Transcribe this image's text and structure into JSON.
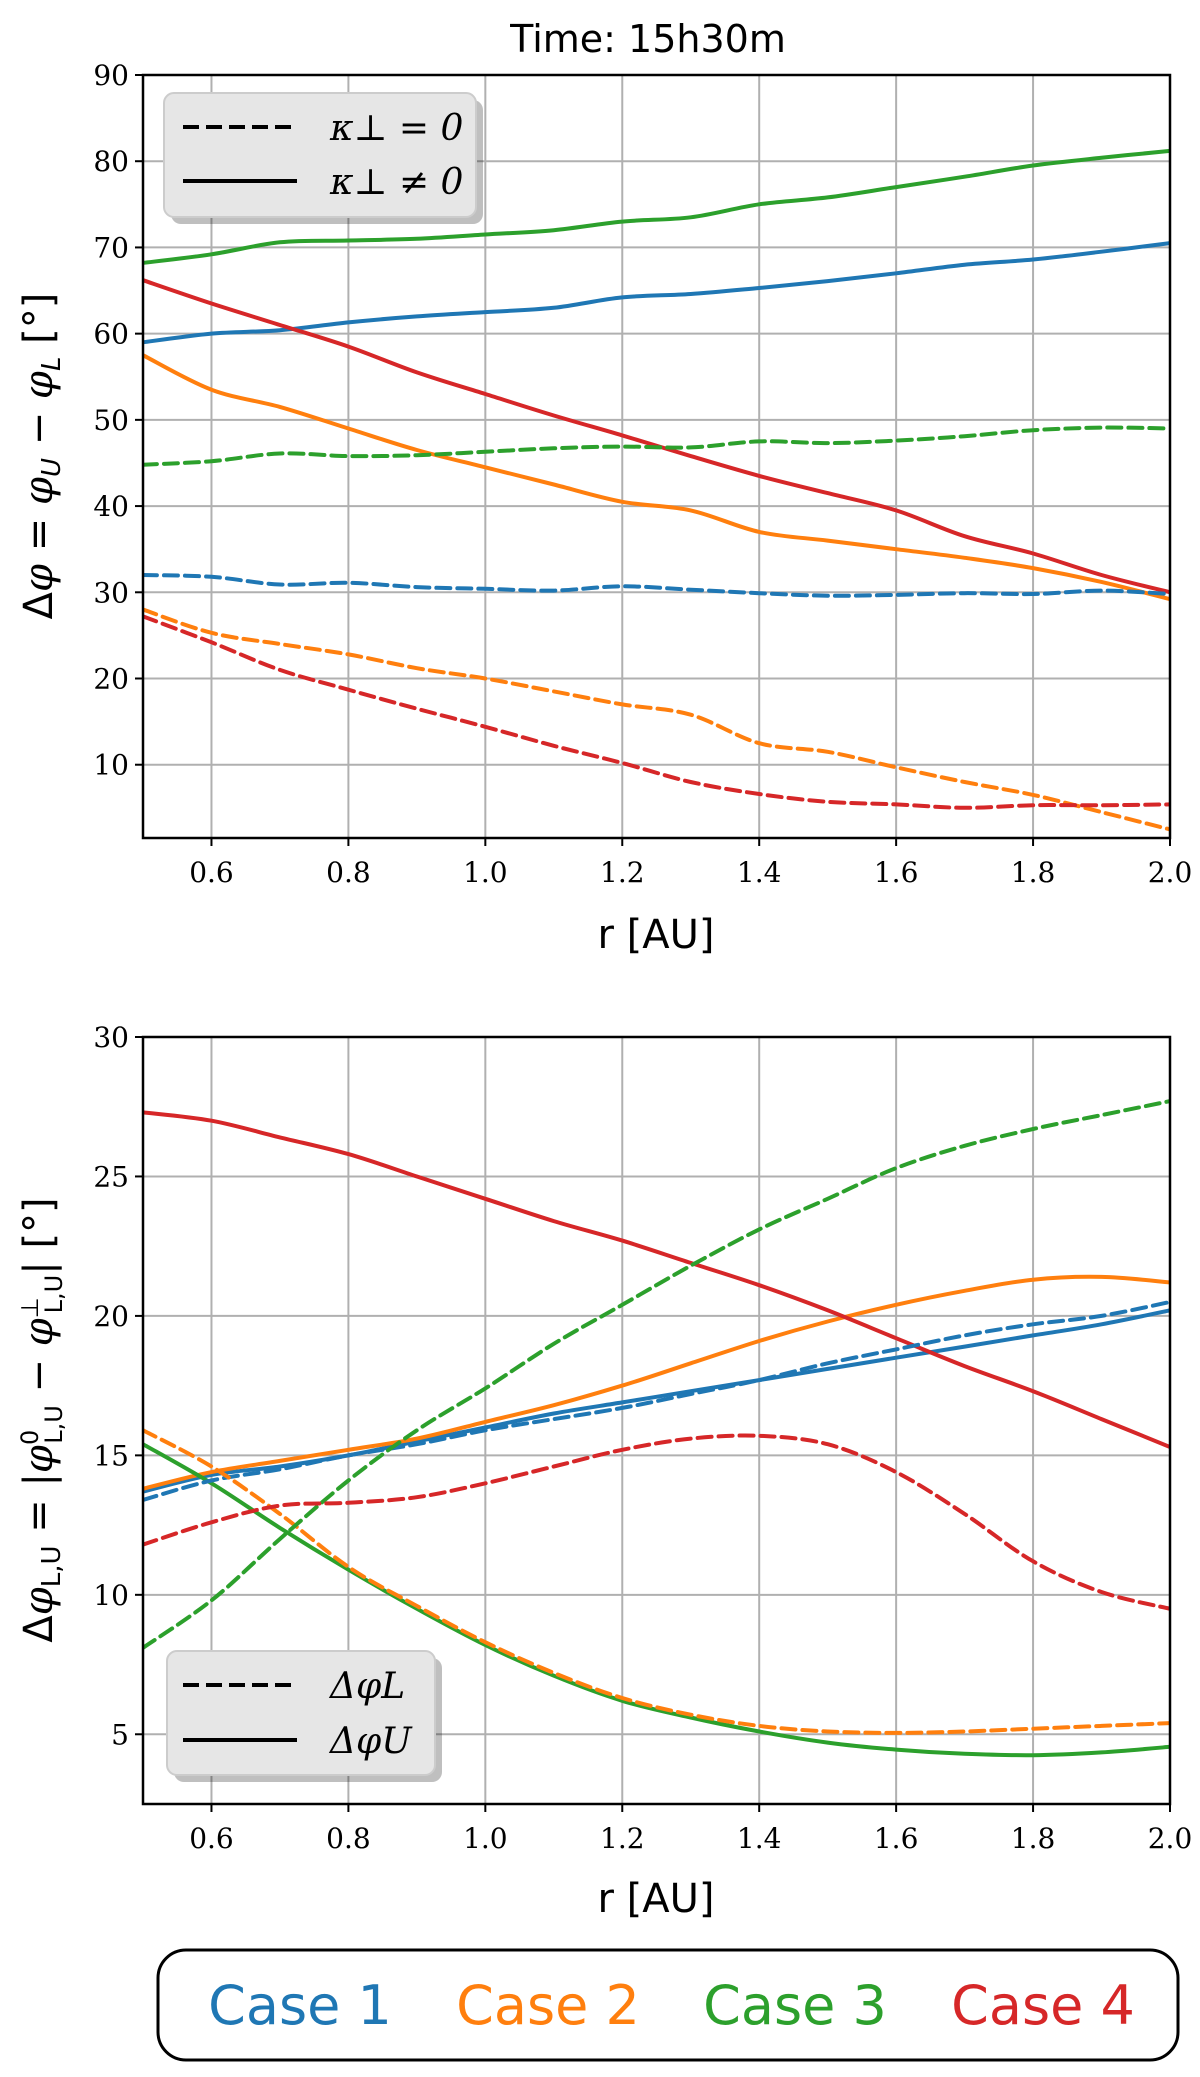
{
  "title": "Time: 15h30m",
  "colors": {
    "case1": "#1f77b4",
    "case2": "#ff7f0e",
    "case3": "#2ca02c",
    "case4": "#d62728"
  },
  "case_legend": [
    "Case 1",
    "Case 2",
    "Case 3",
    "Case 4"
  ],
  "chart_data": [
    {
      "type": "line",
      "title": "Time: 15h30m",
      "xlabel": "r [AU]",
      "ylabel": "Δφ = φU − φL [°]",
      "xlim": [
        0.5,
        2.0
      ],
      "ylim": [
        1.5,
        90
      ],
      "grid": true,
      "xticks": [
        0.6,
        0.8,
        1.0,
        1.2,
        1.4,
        1.6,
        1.8,
        2.0
      ],
      "xtick_labels": [
        "0.6",
        "0.8",
        "1.0",
        "1.2",
        "1.4",
        "1.6",
        "1.8",
        "2.0"
      ],
      "yticks": [
        10,
        20,
        30,
        40,
        50,
        60,
        70,
        80,
        90
      ],
      "ytick_labels": [
        "10",
        "20",
        "30",
        "40",
        "50",
        "60",
        "70",
        "80",
        "90"
      ],
      "legend": {
        "position": "top-left",
        "entries": [
          {
            "style": "dashed",
            "label": "κ⊥ = 0"
          },
          {
            "style": "solid",
            "label": "κ⊥ ≠ 0"
          }
        ]
      },
      "x": [
        0.5,
        0.6,
        0.7,
        0.8,
        0.9,
        1.0,
        1.1,
        1.2,
        1.3,
        1.4,
        1.5,
        1.6,
        1.7,
        1.8,
        1.9,
        2.0
      ],
      "series": [
        {
          "name": "Case 1 κ⊥≠0",
          "case": "case1",
          "style": "solid",
          "values": [
            59,
            60,
            60.4,
            61.3,
            62,
            62.5,
            63,
            64.2,
            64.6,
            65.3,
            66.1,
            67,
            68,
            68.6,
            69.5,
            70.5
          ]
        },
        {
          "name": "Case 2 κ⊥≠0",
          "case": "case2",
          "style": "solid",
          "values": [
            57.5,
            53.5,
            51.5,
            49,
            46.5,
            44.5,
            42.5,
            40.5,
            39.5,
            37,
            36,
            35,
            34,
            32.8,
            31.2,
            29.2
          ]
        },
        {
          "name": "Case 3 κ⊥≠0",
          "case": "case3",
          "style": "solid",
          "values": [
            68.2,
            69.2,
            70.6,
            70.8,
            71,
            71.5,
            72,
            73,
            73.5,
            75,
            75.8,
            77,
            78.2,
            79.5,
            80.4,
            81.2
          ]
        },
        {
          "name": "Case 4 κ⊥≠0",
          "case": "case4",
          "style": "solid",
          "values": [
            66.2,
            63.5,
            61,
            58.5,
            55.5,
            53,
            50.5,
            48.2,
            45.8,
            43.5,
            41.5,
            39.5,
            36.5,
            34.5,
            32,
            30
          ]
        },
        {
          "name": "Case 1 κ⊥=0",
          "case": "case1",
          "style": "dashed",
          "values": [
            32,
            31.8,
            30.9,
            31.1,
            30.6,
            30.4,
            30.2,
            30.7,
            30.3,
            29.9,
            29.6,
            29.7,
            29.9,
            29.8,
            30.2,
            29.8
          ]
        },
        {
          "name": "Case 2 κ⊥=0",
          "case": "case2",
          "style": "dashed",
          "values": [
            28,
            25.3,
            24,
            22.8,
            21.2,
            20,
            18.5,
            17,
            15.8,
            12.5,
            11.5,
            9.7,
            8,
            6.5,
            4.5,
            2.5
          ]
        },
        {
          "name": "Case 3 κ⊥=0",
          "case": "case3",
          "style": "dashed",
          "values": [
            44.8,
            45.2,
            46.1,
            45.8,
            45.9,
            46.3,
            46.7,
            46.9,
            46.8,
            47.5,
            47.3,
            47.6,
            48.1,
            48.8,
            49.1,
            49
          ]
        },
        {
          "name": "Case 4 κ⊥=0",
          "case": "case4",
          "style": "dashed",
          "values": [
            27.2,
            24.2,
            21,
            18.7,
            16.5,
            14.4,
            12.2,
            10.2,
            8,
            6.6,
            5.7,
            5.4,
            5,
            5.3,
            5.3,
            5.4
          ]
        }
      ]
    },
    {
      "type": "line",
      "xlabel": "r [AU]",
      "ylabel": "ΔφL,U = |φ⁰L,U − φ⊥L,U| [°]",
      "xlim": [
        0.5,
        2.0
      ],
      "ylim": [
        2.5,
        30
      ],
      "grid": true,
      "xticks": [
        0.6,
        0.8,
        1.0,
        1.2,
        1.4,
        1.6,
        1.8,
        2.0
      ],
      "xtick_labels": [
        "0.6",
        "0.8",
        "1.0",
        "1.2",
        "1.4",
        "1.6",
        "1.8",
        "2.0"
      ],
      "yticks": [
        5,
        10,
        15,
        20,
        25,
        30
      ],
      "ytick_labels": [
        "5",
        "10",
        "15",
        "20",
        "25",
        "30"
      ],
      "legend": {
        "position": "bottom-left",
        "entries": [
          {
            "style": "dashed",
            "label": "ΔφL"
          },
          {
            "style": "solid",
            "label": "ΔφU"
          }
        ]
      },
      "x": [
        0.5,
        0.6,
        0.7,
        0.8,
        0.9,
        1.0,
        1.1,
        1.2,
        1.3,
        1.4,
        1.5,
        1.6,
        1.7,
        1.8,
        1.9,
        2.0
      ],
      "series": [
        {
          "name": "Case 1 ΔφU",
          "case": "case1",
          "style": "solid",
          "values": [
            13.7,
            14.3,
            14.6,
            15,
            15.5,
            16,
            16.5,
            16.9,
            17.3,
            17.7,
            18.1,
            18.5,
            18.9,
            19.3,
            19.7,
            20.2
          ]
        },
        {
          "name": "Case 2 ΔφU",
          "case": "case2",
          "style": "solid",
          "values": [
            13.8,
            14.4,
            14.8,
            15.2,
            15.6,
            16.2,
            16.8,
            17.5,
            18.3,
            19.1,
            19.8,
            20.4,
            20.9,
            21.3,
            21.4,
            21.2
          ]
        },
        {
          "name": "Case 3 ΔφU",
          "case": "case3",
          "style": "solid",
          "values": [
            15.4,
            14,
            12.4,
            10.9,
            9.5,
            8.2,
            7.1,
            6.2,
            5.6,
            5.1,
            4.7,
            4.45,
            4.3,
            4.25,
            4.35,
            4.55
          ]
        },
        {
          "name": "Case 4 ΔφU",
          "case": "case4",
          "style": "solid",
          "values": [
            27.3,
            27,
            26.4,
            25.8,
            25,
            24.2,
            23.4,
            22.7,
            21.9,
            21.1,
            20.2,
            19.2,
            18.2,
            17.3,
            16.3,
            15.3
          ]
        },
        {
          "name": "Case 1 ΔφL",
          "case": "case1",
          "style": "dashed",
          "values": [
            13.4,
            14.1,
            14.5,
            15,
            15.4,
            15.9,
            16.3,
            16.7,
            17.2,
            17.7,
            18.3,
            18.8,
            19.3,
            19.7,
            20,
            20.5
          ]
        },
        {
          "name": "Case 2 ΔφL",
          "case": "case2",
          "style": "dashed",
          "values": [
            15.9,
            14.6,
            12.9,
            11,
            9.6,
            8.3,
            7.2,
            6.3,
            5.7,
            5.3,
            5.1,
            5.05,
            5.1,
            5.2,
            5.3,
            5.4
          ]
        },
        {
          "name": "Case 3 ΔφL",
          "case": "case3",
          "style": "dashed",
          "values": [
            8.1,
            9.8,
            12,
            14.1,
            15.9,
            17.4,
            19,
            20.4,
            21.8,
            23.1,
            24.2,
            25.3,
            26.1,
            26.7,
            27.2,
            27.7
          ]
        },
        {
          "name": "Case 4 ΔφL",
          "case": "case4",
          "style": "dashed",
          "values": [
            11.8,
            12.6,
            13.2,
            13.3,
            13.5,
            14,
            14.6,
            15.2,
            15.6,
            15.7,
            15.4,
            14.4,
            12.9,
            11.2,
            10.1,
            9.5
          ]
        }
      ]
    }
  ]
}
